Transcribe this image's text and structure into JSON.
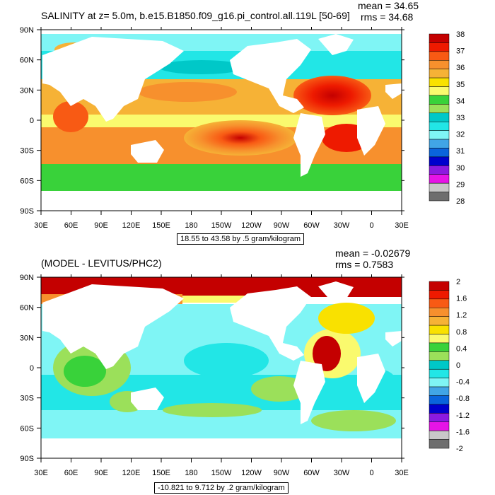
{
  "chart_data": [
    {
      "type": "heatmap",
      "title": "SALINITY at z=   5.0m, b.e15.B1850.f09_g16.pi_control.all.119L [50-69]",
      "stats": {
        "mean": "mean = 34.65",
        "rms": "rms = 34.68"
      },
      "info": "18.55 to 43.58 by .5 gram/kilogram",
      "x_ticks": [
        "30E",
        "60E",
        "90E",
        "120E",
        "150E",
        "180",
        "150W",
        "120W",
        "90W",
        "60W",
        "30W",
        "0",
        "30E"
      ],
      "y_ticks": [
        "90N",
        "60N",
        "30N",
        "0",
        "30S",
        "60S",
        "90S"
      ],
      "xlim": [
        30,
        390
      ],
      "ylim": [
        -90,
        90
      ],
      "colorbar": {
        "labels": [
          "38",
          "37",
          "36",
          "35",
          "34",
          "33",
          "32",
          "31",
          "30",
          "29",
          "28"
        ],
        "colors": [
          "#c40000",
          "#ee1a00",
          "#f85a14",
          "#f7902d",
          "#f6b236",
          "#f9e100",
          "#fafa6e",
          "#39d23a",
          "#9be05a",
          "#00c8c8",
          "#22e6e6",
          "#7ff5f5",
          "#41a5e6",
          "#0a64dc",
          "#0000cd",
          "#8c1ae0",
          "#e614e6",
          "#c8c8c8",
          "#6e6e6e"
        ]
      }
    },
    {
      "type": "heatmap",
      "title": "(MODEL - LEVITUS/PHC2)",
      "stats": {
        "mean": "mean = -0.02679",
        "rms": "rms = 0.7583"
      },
      "info": "-10.821 to 9.712 by .2 gram/kilogram",
      "x_ticks": [
        "30E",
        "60E",
        "90E",
        "120E",
        "150E",
        "180",
        "150W",
        "120W",
        "90W",
        "60W",
        "30W",
        "0",
        "30E"
      ],
      "y_ticks": [
        "90N",
        "60N",
        "30N",
        "0",
        "30S",
        "60S",
        "90S"
      ],
      "xlim": [
        30,
        390
      ],
      "ylim": [
        -90,
        90
      ],
      "colorbar": {
        "labels": [
          "2",
          "1.6",
          "1.2",
          "0.8",
          "0.4",
          "0",
          "-0.4",
          "-0.8",
          "-1.2",
          "-1.6",
          "-2"
        ],
        "colors": [
          "#c40000",
          "#ee1a00",
          "#f85a14",
          "#f7902d",
          "#f6b236",
          "#f9e100",
          "#fafa6e",
          "#39d23a",
          "#9be05a",
          "#00c8c8",
          "#22e6e6",
          "#7ff5f5",
          "#41a5e6",
          "#0a64dc",
          "#0000cd",
          "#8c1ae0",
          "#e614e6",
          "#c8c8c8",
          "#6e6e6e"
        ]
      }
    }
  ]
}
